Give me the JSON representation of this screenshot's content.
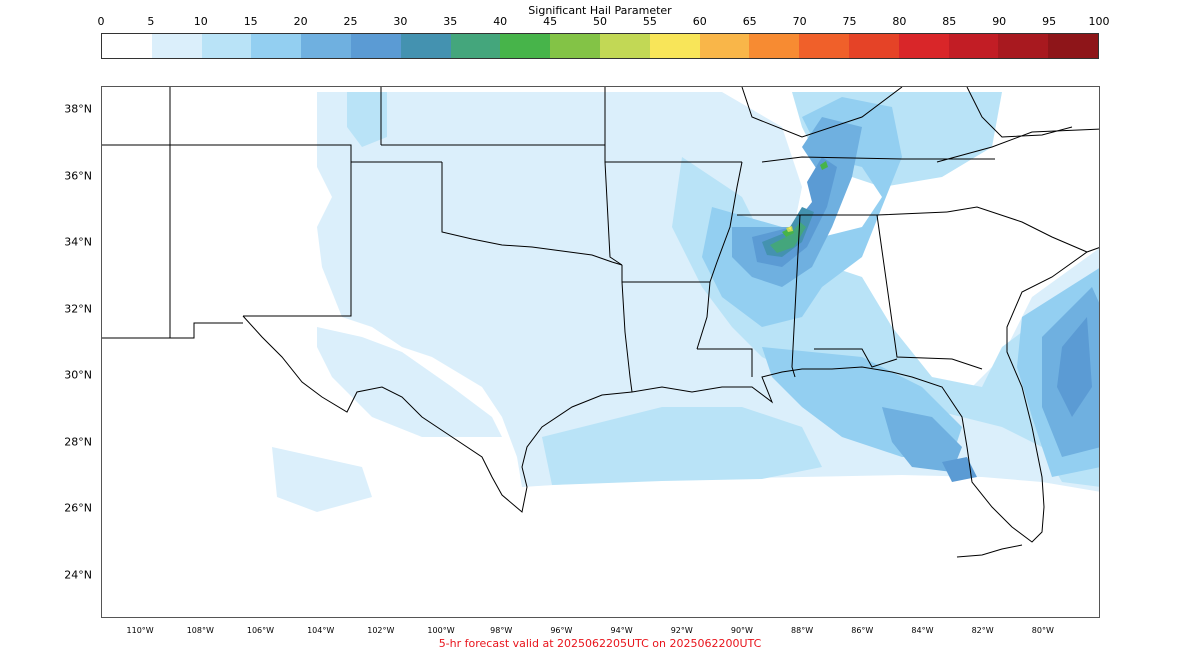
{
  "title": "Significant Hail Parameter",
  "footer": "5-hr forecast valid at 2025062205UTC on 2025062200UTC",
  "colorbar": {
    "ticks": [
      "0",
      "5",
      "10",
      "15",
      "20",
      "25",
      "30",
      "35",
      "40",
      "45",
      "50",
      "55",
      "60",
      "65",
      "70",
      "75",
      "80",
      "85",
      "90",
      "95",
      "100"
    ],
    "colors": [
      "#ffffff",
      "#dbeffb",
      "#b9e3f7",
      "#93cff1",
      "#6fb0e0",
      "#5b9bd4",
      "#4492b0",
      "#44a67c",
      "#47b44a",
      "#83c346",
      "#c2d855",
      "#f8e559",
      "#f9b649",
      "#f78b32",
      "#f0602a",
      "#e54327",
      "#d92629",
      "#c21d25",
      "#a8191f",
      "#8e1519"
    ]
  },
  "axes": {
    "lat_labels": [
      "38°N",
      "36°N",
      "34°N",
      "32°N",
      "30°N",
      "28°N",
      "26°N",
      "24°N"
    ],
    "lon_labels": [
      "110°W",
      "108°W",
      "106°W",
      "104°W",
      "102°W",
      "100°W",
      "98°W",
      "96°W",
      "94°W",
      "92°W",
      "90°W",
      "88°W",
      "86°W",
      "84°W",
      "82°W",
      "80°W"
    ]
  },
  "map": {
    "extent_lon": [
      -111.3,
      -78.1
    ],
    "extent_lat": [
      22.7,
      38.7
    ],
    "land_fill": "#ffffff",
    "border_color": "#000000"
  }
}
